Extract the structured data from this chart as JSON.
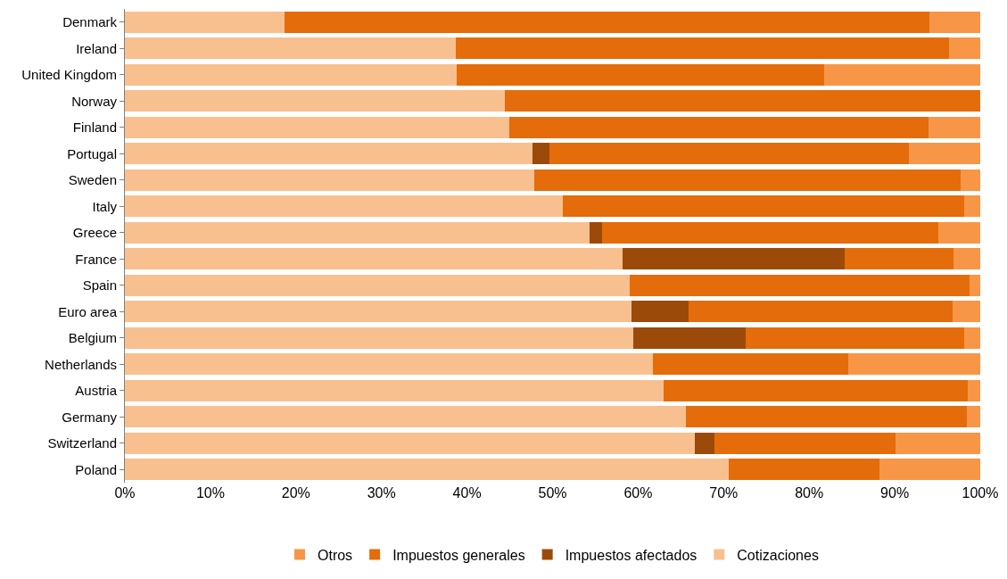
{
  "chart_data": {
    "type": "bar",
    "orientation": "horizontal",
    "stacked": true,
    "categories": [
      "Denmark",
      "Ireland",
      "United Kingdom",
      "Norway",
      "Finland",
      "Portugal",
      "Sweden",
      "Italy",
      "Greece",
      "France",
      "Spain",
      "Euro area",
      "Belgium",
      "Netherlands",
      "Austria",
      "Germany",
      "Switzerland",
      "Poland"
    ],
    "series": [
      {
        "name": "Cotizaciones",
        "color": "#f9c08f",
        "values": [
          18.7,
          38.7,
          38.8,
          44.4,
          44.9,
          47.7,
          47.9,
          51.2,
          54.3,
          58.2,
          59.0,
          59.2,
          59.4,
          61.7,
          63.0,
          65.6,
          66.6,
          70.6
        ]
      },
      {
        "name": "Impuestos afectados",
        "color": "#9c4a0a",
        "values": [
          0,
          0,
          0,
          0,
          0,
          1.9,
          0,
          0,
          1.5,
          26.0,
          0,
          6.7,
          13.2,
          0,
          0,
          0,
          2.3,
          0
        ]
      },
      {
        "name": "Impuestos generales",
        "color": "#e46c0a",
        "values": [
          75.4,
          57.6,
          43.0,
          55.6,
          49.0,
          42.1,
          49.8,
          46.9,
          39.3,
          12.7,
          39.7,
          30.9,
          25.5,
          22.9,
          35.5,
          32.8,
          21.2,
          17.6
        ]
      },
      {
        "name": "Otros",
        "color": "#f79646",
        "values": [
          5.9,
          3.7,
          18.2,
          0,
          6.1,
          8.3,
          2.3,
          1.9,
          4.9,
          3.1,
          1.3,
          3.2,
          1.9,
          15.4,
          1.5,
          1.6,
          9.9,
          11.8
        ]
      }
    ],
    "xlim": [
      0,
      100
    ],
    "xticks": [
      {
        "value": 0,
        "label": "0%"
      },
      {
        "value": 10,
        "label": "10%"
      },
      {
        "value": 20,
        "label": "20%"
      },
      {
        "value": 30,
        "label": "30%"
      },
      {
        "value": 40,
        "label": "40%"
      },
      {
        "value": 50,
        "label": "50%"
      },
      {
        "value": 60,
        "label": "60%"
      },
      {
        "value": 70,
        "label": "70%"
      },
      {
        "value": 80,
        "label": "80%"
      },
      {
        "value": 90,
        "label": "90%"
      },
      {
        "value": 100,
        "label": "100%"
      }
    ],
    "grid": false,
    "legend": "bottom"
  }
}
